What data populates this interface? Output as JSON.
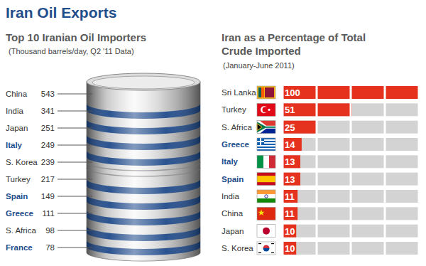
{
  "title": "Iran Oil Exports",
  "chart_data": [
    {
      "type": "list",
      "title": "Top 10 Iranian Oil Importers",
      "subtitle": "(Thousand barrels/day, Q2 '11 Data)",
      "categories": [
        "China",
        "India",
        "Japan",
        "Italy",
        "S. Korea",
        "Turkey",
        "Spain",
        "Greece",
        "S. Africa",
        "France"
      ],
      "values": [
        543,
        341,
        251,
        249,
        239,
        217,
        149,
        111,
        98,
        78
      ],
      "colors": [
        "#333333",
        "#333333",
        "#333333",
        "#1f4e8c",
        "#333333",
        "#333333",
        "#1f4e8c",
        "#1f4e8c",
        "#333333",
        "#1f4e8c"
      ],
      "data_labels": true
    },
    {
      "type": "bar",
      "orientation": "horizontal",
      "title": "Iran as a Percentage of Total Crude Imported",
      "subtitle": "(January-June 2011)",
      "categories": [
        "Sri Lanka",
        "Turkey",
        "S. Africa",
        "Greece",
        "Italy",
        "Spain",
        "India",
        "China",
        "Japan",
        "S. Korea"
      ],
      "values": [
        100,
        51,
        25,
        14,
        13,
        13,
        11,
        11,
        10,
        10
      ],
      "color": "#e5321f",
      "xlim": [
        0,
        100
      ],
      "xticks": [
        0,
        25,
        50,
        75,
        100
      ],
      "grid": true,
      "tick_labels": false,
      "data_labels": true
    }
  ]
}
